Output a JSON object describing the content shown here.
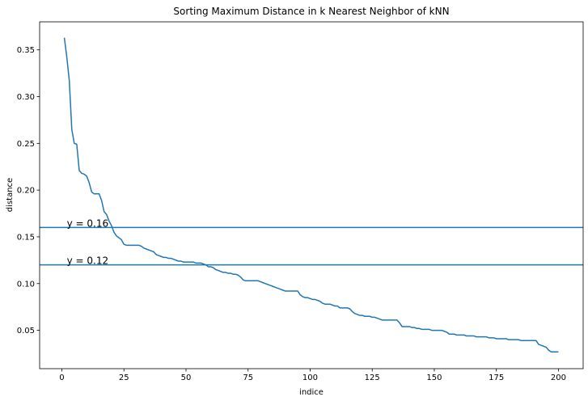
{
  "chart_data": {
    "type": "line",
    "title": "Sorting Maximum Distance in k Nearest Neighbor of kNN",
    "xlabel": "indice",
    "ylabel": "distance",
    "xlim": [
      -8.95,
      209.95
    ],
    "ylim": [
      0.009,
      0.38
    ],
    "xticks": [
      0,
      25,
      50,
      75,
      100,
      125,
      150,
      175,
      200
    ],
    "yticks": [
      0.05,
      0.1,
      0.15,
      0.2,
      0.25,
      0.3,
      0.35
    ],
    "ytick_labels": [
      "0.05",
      "0.10",
      "0.15",
      "0.20",
      "0.25",
      "0.30",
      "0.35"
    ],
    "grid": false,
    "line_color": "#1f77b4",
    "series": [
      {
        "x": [
          1,
          2,
          3,
          4,
          5,
          6,
          7,
          8,
          9,
          10,
          11,
          12,
          13,
          14,
          15,
          16,
          17,
          18,
          19,
          20,
          21,
          22,
          23,
          24,
          25,
          26,
          27,
          28,
          29,
          30,
          31,
          32,
          33,
          34,
          35,
          36,
          37,
          38,
          39,
          40,
          41,
          42,
          43,
          44,
          45,
          46,
          47,
          48,
          49,
          50,
          51,
          52,
          53,
          54,
          55,
          56,
          57,
          58,
          59,
          60,
          61,
          62,
          63,
          64,
          65,
          66,
          67,
          68,
          69,
          70,
          71,
          72,
          73,
          74,
          75,
          76,
          77,
          78,
          79,
          80,
          81,
          82,
          83,
          84,
          85,
          86,
          87,
          88,
          89,
          90,
          91,
          92,
          93,
          94,
          95,
          96,
          97,
          98,
          99,
          100,
          101,
          102,
          103,
          104,
          105,
          106,
          107,
          108,
          109,
          110,
          111,
          112,
          113,
          114,
          115,
          116,
          117,
          118,
          119,
          120,
          121,
          122,
          123,
          124,
          125,
          126,
          127,
          128,
          129,
          130,
          131,
          132,
          133,
          134,
          135,
          136,
          137,
          138,
          139,
          140,
          141,
          142,
          143,
          144,
          145,
          146,
          147,
          148,
          149,
          150,
          151,
          152,
          153,
          154,
          155,
          156,
          157,
          158,
          159,
          160,
          161,
          162,
          163,
          164,
          165,
          166,
          167,
          168,
          169,
          170,
          171,
          172,
          173,
          174,
          175,
          176,
          177,
          178,
          179,
          180,
          181,
          182,
          183,
          184,
          185,
          186,
          187,
          188,
          189,
          190,
          191,
          192,
          193,
          194,
          195,
          196,
          197,
          198,
          199,
          200
        ],
        "values": [
          0.363,
          0.342,
          0.317,
          0.265,
          0.25,
          0.249,
          0.221,
          0.218,
          0.217,
          0.215,
          0.208,
          0.198,
          0.196,
          0.196,
          0.196,
          0.189,
          0.177,
          0.174,
          0.167,
          0.162,
          0.155,
          0.151,
          0.149,
          0.147,
          0.142,
          0.141,
          0.141,
          0.141,
          0.141,
          0.141,
          0.141,
          0.14,
          0.138,
          0.137,
          0.136,
          0.135,
          0.134,
          0.131,
          0.13,
          0.129,
          0.128,
          0.128,
          0.127,
          0.127,
          0.126,
          0.125,
          0.124,
          0.124,
          0.123,
          0.123,
          0.123,
          0.123,
          0.123,
          0.122,
          0.122,
          0.122,
          0.121,
          0.12,
          0.118,
          0.118,
          0.117,
          0.115,
          0.114,
          0.113,
          0.112,
          0.112,
          0.111,
          0.111,
          0.11,
          0.11,
          0.109,
          0.107,
          0.104,
          0.103,
          0.103,
          0.103,
          0.103,
          0.103,
          0.103,
          0.102,
          0.101,
          0.1,
          0.099,
          0.098,
          0.097,
          0.096,
          0.095,
          0.094,
          0.093,
          0.092,
          0.092,
          0.092,
          0.092,
          0.092,
          0.092,
          0.088,
          0.086,
          0.085,
          0.085,
          0.084,
          0.083,
          0.083,
          0.082,
          0.081,
          0.079,
          0.078,
          0.078,
          0.078,
          0.077,
          0.076,
          0.076,
          0.074,
          0.074,
          0.074,
          0.074,
          0.073,
          0.07,
          0.068,
          0.067,
          0.066,
          0.066,
          0.065,
          0.065,
          0.065,
          0.064,
          0.064,
          0.063,
          0.062,
          0.061,
          0.061,
          0.061,
          0.061,
          0.061,
          0.061,
          0.061,
          0.058,
          0.054,
          0.054,
          0.054,
          0.054,
          0.053,
          0.053,
          0.052,
          0.052,
          0.051,
          0.051,
          0.051,
          0.051,
          0.05,
          0.05,
          0.05,
          0.05,
          0.05,
          0.049,
          0.048,
          0.046,
          0.046,
          0.046,
          0.045,
          0.045,
          0.045,
          0.045,
          0.044,
          0.044,
          0.044,
          0.044,
          0.043,
          0.043,
          0.043,
          0.043,
          0.043,
          0.042,
          0.042,
          0.042,
          0.041,
          0.041,
          0.041,
          0.041,
          0.041,
          0.04,
          0.04,
          0.04,
          0.04,
          0.04,
          0.039,
          0.039,
          0.039,
          0.039,
          0.039,
          0.039,
          0.039,
          0.035,
          0.034,
          0.033,
          0.032,
          0.029,
          0.027,
          0.027,
          0.027,
          0.027
        ]
      }
    ],
    "hlines": [
      {
        "y": 0.16,
        "label": "y = 0.16"
      },
      {
        "y": 0.12,
        "label": "y = 0.12"
      }
    ],
    "annotation_x": 2
  }
}
